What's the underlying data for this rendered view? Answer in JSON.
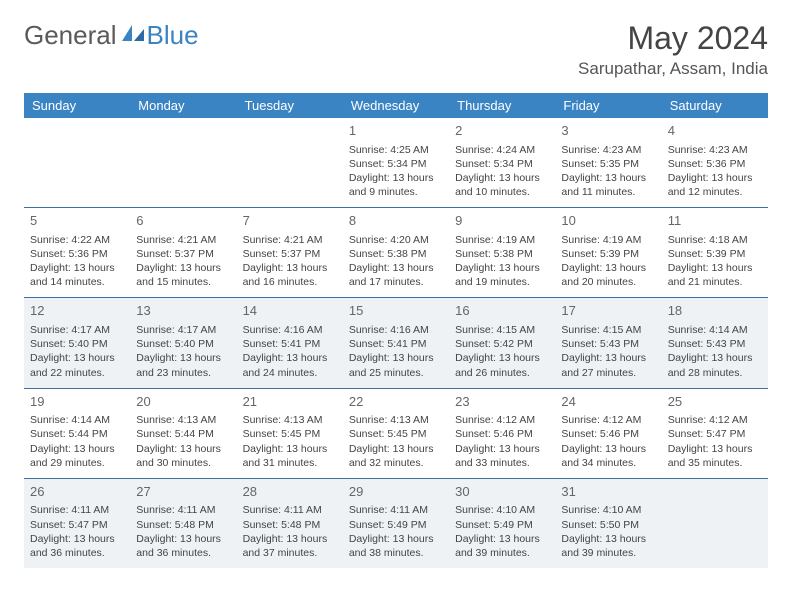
{
  "brand": {
    "part1": "General",
    "part2": "Blue",
    "icon_color": "#3b84c4"
  },
  "title": "May 2024",
  "location": "Sarupathar, Assam, India",
  "colors": {
    "header_bg": "#3b84c4",
    "header_text": "#ffffff",
    "alt_row_bg": "#eef2f5",
    "cell_border": "#3b6fa5",
    "text": "#444444"
  },
  "weekdays": [
    "Sunday",
    "Monday",
    "Tuesday",
    "Wednesday",
    "Thursday",
    "Friday",
    "Saturday"
  ],
  "weeks": [
    [
      null,
      null,
      null,
      {
        "n": "1",
        "sr": "4:25 AM",
        "ss": "5:34 PM",
        "dl": "13 hours and 9 minutes."
      },
      {
        "n": "2",
        "sr": "4:24 AM",
        "ss": "5:34 PM",
        "dl": "13 hours and 10 minutes."
      },
      {
        "n": "3",
        "sr": "4:23 AM",
        "ss": "5:35 PM",
        "dl": "13 hours and 11 minutes."
      },
      {
        "n": "4",
        "sr": "4:23 AM",
        "ss": "5:36 PM",
        "dl": "13 hours and 12 minutes."
      }
    ],
    [
      {
        "n": "5",
        "sr": "4:22 AM",
        "ss": "5:36 PM",
        "dl": "13 hours and 14 minutes."
      },
      {
        "n": "6",
        "sr": "4:21 AM",
        "ss": "5:37 PM",
        "dl": "13 hours and 15 minutes."
      },
      {
        "n": "7",
        "sr": "4:21 AM",
        "ss": "5:37 PM",
        "dl": "13 hours and 16 minutes."
      },
      {
        "n": "8",
        "sr": "4:20 AM",
        "ss": "5:38 PM",
        "dl": "13 hours and 17 minutes."
      },
      {
        "n": "9",
        "sr": "4:19 AM",
        "ss": "5:38 PM",
        "dl": "13 hours and 19 minutes."
      },
      {
        "n": "10",
        "sr": "4:19 AM",
        "ss": "5:39 PM",
        "dl": "13 hours and 20 minutes."
      },
      {
        "n": "11",
        "sr": "4:18 AM",
        "ss": "5:39 PM",
        "dl": "13 hours and 21 minutes."
      }
    ],
    [
      {
        "n": "12",
        "sr": "4:17 AM",
        "ss": "5:40 PM",
        "dl": "13 hours and 22 minutes."
      },
      {
        "n": "13",
        "sr": "4:17 AM",
        "ss": "5:40 PM",
        "dl": "13 hours and 23 minutes."
      },
      {
        "n": "14",
        "sr": "4:16 AM",
        "ss": "5:41 PM",
        "dl": "13 hours and 24 minutes."
      },
      {
        "n": "15",
        "sr": "4:16 AM",
        "ss": "5:41 PM",
        "dl": "13 hours and 25 minutes."
      },
      {
        "n": "16",
        "sr": "4:15 AM",
        "ss": "5:42 PM",
        "dl": "13 hours and 26 minutes."
      },
      {
        "n": "17",
        "sr": "4:15 AM",
        "ss": "5:43 PM",
        "dl": "13 hours and 27 minutes."
      },
      {
        "n": "18",
        "sr": "4:14 AM",
        "ss": "5:43 PM",
        "dl": "13 hours and 28 minutes."
      }
    ],
    [
      {
        "n": "19",
        "sr": "4:14 AM",
        "ss": "5:44 PM",
        "dl": "13 hours and 29 minutes."
      },
      {
        "n": "20",
        "sr": "4:13 AM",
        "ss": "5:44 PM",
        "dl": "13 hours and 30 minutes."
      },
      {
        "n": "21",
        "sr": "4:13 AM",
        "ss": "5:45 PM",
        "dl": "13 hours and 31 minutes."
      },
      {
        "n": "22",
        "sr": "4:13 AM",
        "ss": "5:45 PM",
        "dl": "13 hours and 32 minutes."
      },
      {
        "n": "23",
        "sr": "4:12 AM",
        "ss": "5:46 PM",
        "dl": "13 hours and 33 minutes."
      },
      {
        "n": "24",
        "sr": "4:12 AM",
        "ss": "5:46 PM",
        "dl": "13 hours and 34 minutes."
      },
      {
        "n": "25",
        "sr": "4:12 AM",
        "ss": "5:47 PM",
        "dl": "13 hours and 35 minutes."
      }
    ],
    [
      {
        "n": "26",
        "sr": "4:11 AM",
        "ss": "5:47 PM",
        "dl": "13 hours and 36 minutes."
      },
      {
        "n": "27",
        "sr": "4:11 AM",
        "ss": "5:48 PM",
        "dl": "13 hours and 36 minutes."
      },
      {
        "n": "28",
        "sr": "4:11 AM",
        "ss": "5:48 PM",
        "dl": "13 hours and 37 minutes."
      },
      {
        "n": "29",
        "sr": "4:11 AM",
        "ss": "5:49 PM",
        "dl": "13 hours and 38 minutes."
      },
      {
        "n": "30",
        "sr": "4:10 AM",
        "ss": "5:49 PM",
        "dl": "13 hours and 39 minutes."
      },
      {
        "n": "31",
        "sr": "4:10 AM",
        "ss": "5:50 PM",
        "dl": "13 hours and 39 minutes."
      },
      null
    ]
  ],
  "labels": {
    "sunrise": "Sunrise:",
    "sunset": "Sunset:",
    "daylight": "Daylight:"
  }
}
